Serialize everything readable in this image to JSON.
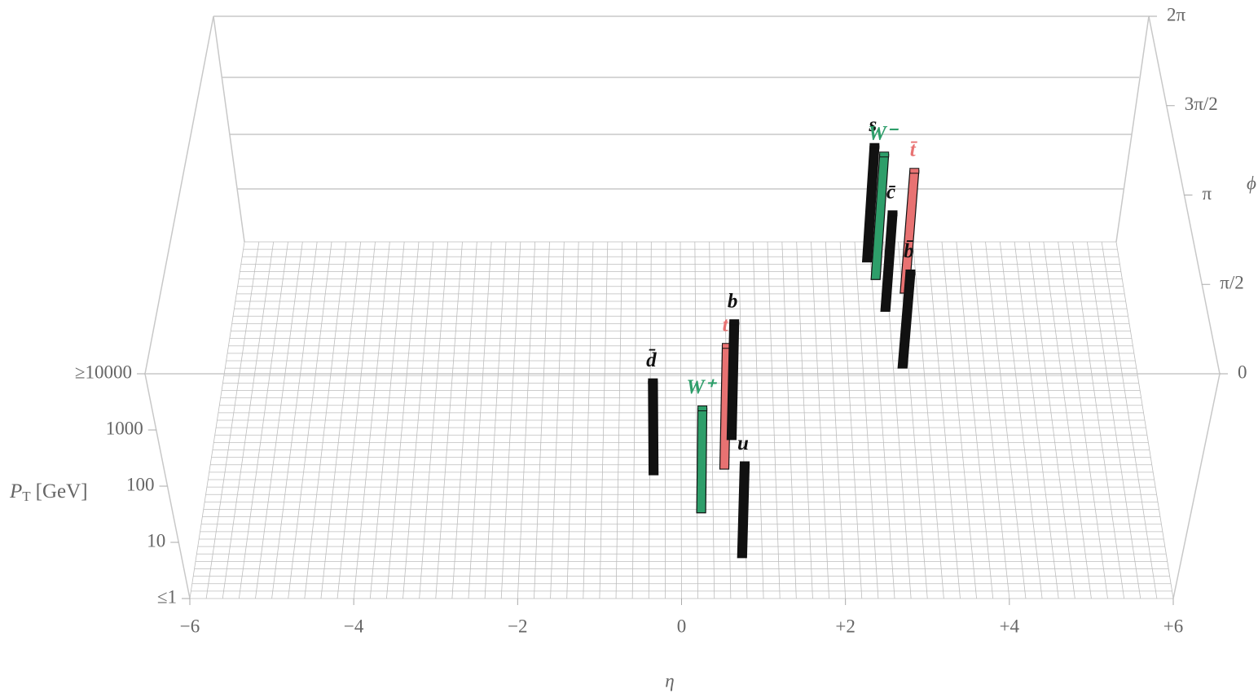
{
  "chart_data": {
    "type": "lego3d",
    "xlabel": "η",
    "ylabel": "ϕ",
    "zlabel": {
      "main": "P",
      "sub": "T",
      "unit": "[GeV]"
    },
    "xlim": [
      -6,
      6
    ],
    "xticks": [
      {
        "value": -6,
        "label": "−6"
      },
      {
        "value": -4,
        "label": "−4"
      },
      {
        "value": -2,
        "label": "−2"
      },
      0,
      {
        "value": 2,
        "label": "+2"
      },
      {
        "value": 4,
        "label": "+4"
      },
      {
        "value": 6,
        "label": "+6"
      }
    ],
    "ylim": [
      0,
      6.2832
    ],
    "yticks": [
      0,
      {
        "value": 1.5708,
        "label": "π/2"
      },
      {
        "value": 3.1416,
        "label": "π"
      },
      {
        "value": 4.7124,
        "label": "3π/2"
      },
      {
        "value": 6.2832,
        "label": "2π"
      }
    ],
    "zlim": [
      1,
      10000
    ],
    "zlog": true,
    "zticks": [
      {
        "value": 1,
        "label": "≤1"
      },
      10,
      100,
      1000,
      {
        "value": 10000,
        "label": "≥10000"
      }
    ],
    "labels": [
      "u",
      "d̄",
      "W⁺",
      "t",
      "b",
      "s",
      "W⁻",
      "c̄",
      "t̄",
      "b̄"
    ],
    "x": [
      0.75,
      -0.35,
      0.25,
      0.55,
      0.65,
      2.55,
      2.65,
      2.75,
      3.03,
      2.92
    ],
    "y": [
      0.72,
      2.18,
      1.51,
      2.28,
      2.8,
      5.93,
      5.62,
      5.06,
      5.38,
      4.06
    ],
    "values": [
      46,
      46,
      72,
      155,
      122,
      114,
      165,
      55,
      148,
      50
    ],
    "colors": [
      "#111111",
      "#111111",
      "#2e9e6a",
      "#e87272",
      "#111111",
      "#111111",
      "#2e9e6a",
      "#111111",
      "#e87272",
      "#111111"
    ]
  }
}
